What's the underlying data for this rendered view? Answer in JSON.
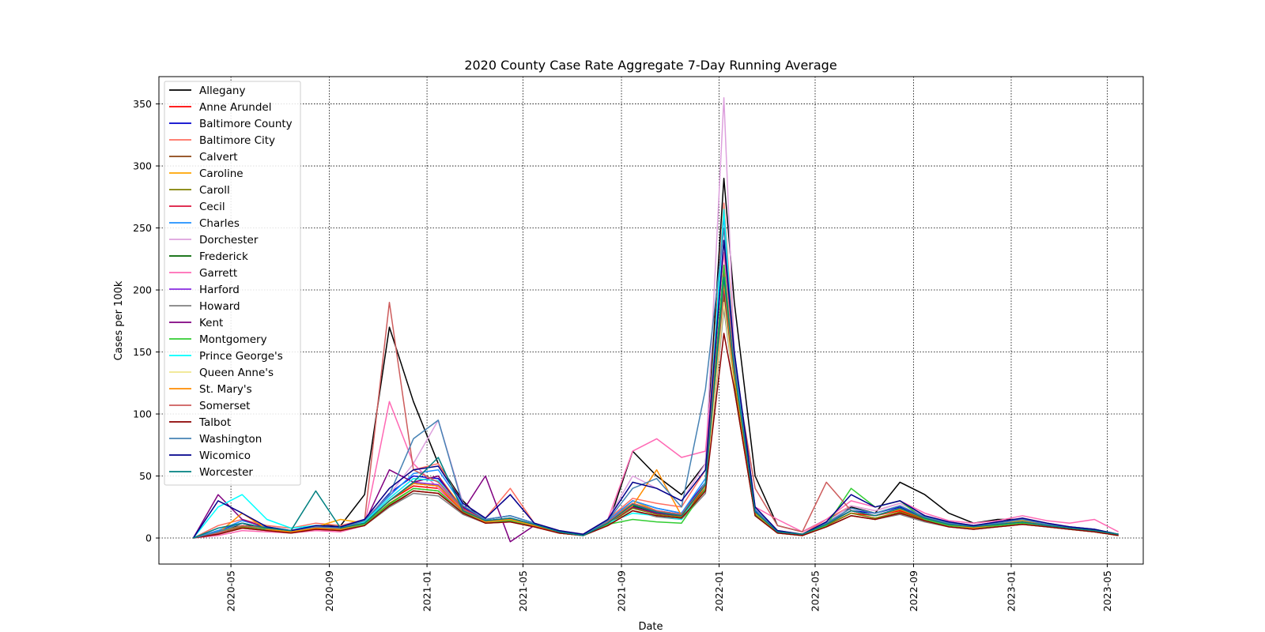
{
  "chart_data": {
    "type": "line",
    "title": "2020 County Case Rate Aggregate 7-Day Running Average",
    "xlabel": "Date",
    "ylabel": "Cases per 100k",
    "x_ticks": [
      "2020-05",
      "2020-09",
      "2021-01",
      "2021-05",
      "2021-09",
      "2022-01",
      "2022-05",
      "2022-09",
      "2023-01",
      "2023-05"
    ],
    "y_ticks": [
      0,
      50,
      100,
      150,
      200,
      250,
      300,
      350
    ],
    "xlim": [
      "2020-02-01",
      "2023-06-15"
    ],
    "ylim": [
      -21,
      372
    ],
    "grid": true,
    "legend_position": "upper-left",
    "x": [
      "2020-03-15",
      "2020-04-15",
      "2020-05-15",
      "2020-06-15",
      "2020-07-15",
      "2020-08-15",
      "2020-09-15",
      "2020-10-15",
      "2020-11-15",
      "2020-12-15",
      "2021-01-15",
      "2021-02-15",
      "2021-03-15",
      "2021-04-15",
      "2021-05-15",
      "2021-06-15",
      "2021-07-15",
      "2021-08-15",
      "2021-09-15",
      "2021-10-15",
      "2021-11-15",
      "2021-12-15",
      "2022-01-07",
      "2022-01-20",
      "2022-02-15",
      "2022-03-15",
      "2022-04-15",
      "2022-05-15",
      "2022-06-15",
      "2022-07-15",
      "2022-08-15",
      "2022-09-15",
      "2022-10-15",
      "2022-11-15",
      "2022-12-15",
      "2023-01-15",
      "2023-02-15",
      "2023-03-15",
      "2023-04-15",
      "2023-05-15"
    ],
    "series": [
      {
        "name": "Allegany",
        "color": "#000000",
        "values": [
          0,
          3,
          12,
          6,
          5,
          10,
          10,
          35,
          170,
          110,
          60,
          30,
          12,
          15,
          10,
          5,
          3,
          10,
          70,
          50,
          35,
          60,
          290,
          190,
          50,
          10,
          5,
          15,
          25,
          20,
          45,
          35,
          20,
          12,
          15,
          15,
          10,
          8,
          6,
          3
        ]
      },
      {
        "name": "Anne Arundel",
        "color": "#ff0000",
        "values": [
          0,
          5,
          10,
          7,
          5,
          8,
          7,
          12,
          30,
          42,
          40,
          22,
          14,
          15,
          10,
          4,
          2,
          12,
          25,
          20,
          18,
          40,
          200,
          130,
          20,
          5,
          3,
          10,
          20,
          18,
          22,
          15,
          10,
          8,
          10,
          12,
          10,
          8,
          6,
          3
        ]
      },
      {
        "name": "Baltimore County",
        "color": "#0000cd",
        "values": [
          0,
          6,
          12,
          8,
          6,
          9,
          8,
          14,
          36,
          50,
          48,
          25,
          15,
          18,
          12,
          5,
          2,
          14,
          30,
          24,
          20,
          45,
          220,
          140,
          22,
          5,
          3,
          12,
          22,
          20,
          25,
          17,
          12,
          9,
          12,
          14,
          11,
          8,
          6,
          3
        ]
      },
      {
        "name": "Baltimore City",
        "color": "#ff6f61",
        "values": [
          0,
          10,
          15,
          10,
          8,
          12,
          10,
          15,
          40,
          55,
          60,
          28,
          16,
          40,
          12,
          6,
          3,
          15,
          32,
          28,
          25,
          55,
          270,
          150,
          25,
          6,
          3,
          15,
          26,
          22,
          28,
          18,
          13,
          10,
          13,
          16,
          12,
          9,
          7,
          3
        ]
      },
      {
        "name": "Calvert",
        "color": "#8b4513",
        "values": [
          0,
          3,
          8,
          6,
          4,
          7,
          6,
          10,
          25,
          38,
          36,
          20,
          12,
          13,
          9,
          4,
          2,
          10,
          22,
          18,
          16,
          38,
          190,
          120,
          18,
          4,
          2,
          9,
          18,
          15,
          20,
          14,
          9,
          7,
          9,
          11,
          9,
          7,
          5,
          2
        ]
      },
      {
        "name": "Caroline",
        "color": "#ffa500",
        "values": [
          0,
          4,
          10,
          7,
          5,
          9,
          15,
          12,
          30,
          45,
          50,
          24,
          14,
          16,
          11,
          5,
          2,
          12,
          30,
          22,
          18,
          42,
          210,
          135,
          20,
          5,
          3,
          11,
          22,
          18,
          24,
          16,
          11,
          9,
          12,
          14,
          10,
          8,
          6,
          3
        ]
      },
      {
        "name": "Caroll",
        "color": "#808000",
        "values": [
          0,
          4,
          9,
          6,
          5,
          8,
          7,
          11,
          28,
          40,
          38,
          21,
          13,
          14,
          10,
          4,
          2,
          11,
          24,
          19,
          17,
          39,
          195,
          125,
          19,
          4,
          2,
          10,
          20,
          16,
          21,
          15,
          10,
          8,
          10,
          12,
          9,
          7,
          5,
          2
        ]
      },
      {
        "name": "Cecil",
        "color": "#dc143c",
        "values": [
          0,
          4,
          10,
          7,
          5,
          9,
          8,
          13,
          32,
          48,
          46,
          24,
          14,
          16,
          11,
          5,
          2,
          13,
          28,
          22,
          19,
          44,
          215,
          140,
          21,
          5,
          3,
          11,
          22,
          18,
          24,
          16,
          11,
          9,
          11,
          13,
          10,
          8,
          6,
          3
        ]
      },
      {
        "name": "Charles",
        "color": "#1e90ff",
        "values": [
          0,
          6,
          14,
          9,
          6,
          10,
          9,
          14,
          34,
          52,
          55,
          26,
          15,
          18,
          12,
          5,
          2,
          14,
          30,
          24,
          20,
          48,
          260,
          145,
          23,
          5,
          3,
          12,
          24,
          20,
          26,
          17,
          12,
          10,
          12,
          15,
          11,
          9,
          7,
          3
        ]
      },
      {
        "name": "Dorchester",
        "color": "#dda0dd",
        "values": [
          0,
          5,
          12,
          8,
          6,
          10,
          9,
          15,
          35,
          60,
          95,
          28,
          16,
          35,
          12,
          6,
          3,
          15,
          50,
          40,
          30,
          60,
          355,
          150,
          25,
          6,
          3,
          13,
          26,
          22,
          28,
          18,
          13,
          10,
          13,
          16,
          12,
          9,
          7,
          3
        ]
      },
      {
        "name": "Frederick",
        "color": "#006400",
        "values": [
          0,
          4,
          10,
          7,
          5,
          8,
          7,
          12,
          30,
          44,
          42,
          22,
          13,
          15,
          10,
          4,
          2,
          12,
          26,
          20,
          18,
          42,
          205,
          130,
          20,
          5,
          3,
          11,
          22,
          18,
          23,
          16,
          11,
          8,
          11,
          13,
          10,
          8,
          6,
          3
        ]
      },
      {
        "name": "Garrett",
        "color": "#ff69b4",
        "values": [
          0,
          2,
          6,
          5,
          4,
          6,
          5,
          10,
          110,
          60,
          40,
          20,
          12,
          15,
          10,
          5,
          3,
          15,
          70,
          80,
          65,
          70,
          230,
          140,
          25,
          15,
          5,
          15,
          30,
          25,
          30,
          20,
          14,
          12,
          14,
          18,
          14,
          12,
          15,
          5
        ]
      },
      {
        "name": "Harford",
        "color": "#8a2be2",
        "values": [
          0,
          4,
          10,
          7,
          5,
          8,
          7,
          12,
          30,
          45,
          43,
          22,
          14,
          16,
          11,
          5,
          2,
          12,
          27,
          21,
          18,
          43,
          210,
          135,
          21,
          5,
          3,
          11,
          22,
          18,
          24,
          16,
          11,
          9,
          11,
          13,
          10,
          8,
          6,
          3
        ]
      },
      {
        "name": "Howard",
        "color": "#808080",
        "values": [
          0,
          3,
          8,
          6,
          4,
          7,
          6,
          10,
          25,
          36,
          34,
          19,
          12,
          13,
          9,
          4,
          2,
          10,
          22,
          17,
          15,
          36,
          185,
          120,
          18,
          4,
          2,
          9,
          18,
          15,
          19,
          13,
          9,
          7,
          9,
          11,
          9,
          7,
          5,
          2
        ]
      },
      {
        "name": "Kent",
        "color": "#800080",
        "values": [
          0,
          35,
          15,
          8,
          5,
          8,
          7,
          12,
          55,
          45,
          50,
          22,
          50,
          -3,
          10,
          4,
          2,
          12,
          25,
          20,
          18,
          42,
          200,
          130,
          20,
          5,
          3,
          11,
          22,
          18,
          23,
          16,
          11,
          8,
          11,
          13,
          10,
          8,
          6,
          3
        ]
      },
      {
        "name": "Montgomery",
        "color": "#32cd32",
        "values": [
          0,
          5,
          10,
          7,
          5,
          8,
          7,
          11,
          27,
          40,
          38,
          20,
          13,
          14,
          10,
          4,
          2,
          11,
          15,
          13,
          12,
          40,
          220,
          130,
          19,
          4,
          2,
          10,
          40,
          25,
          30,
          15,
          10,
          8,
          10,
          12,
          9,
          7,
          5,
          2
        ]
      },
      {
        "name": "Prince George's",
        "color": "#00ffff",
        "values": [
          0,
          25,
          35,
          15,
          8,
          10,
          9,
          13,
          32,
          48,
          46,
          23,
          14,
          16,
          11,
          5,
          2,
          12,
          20,
          18,
          15,
          45,
          265,
          140,
          21,
          5,
          3,
          11,
          22,
          18,
          24,
          16,
          11,
          9,
          11,
          13,
          10,
          8,
          6,
          3
        ]
      },
      {
        "name": "Queen Anne's",
        "color": "#f0e68c",
        "values": [
          0,
          3,
          8,
          6,
          4,
          7,
          6,
          10,
          26,
          38,
          36,
          20,
          12,
          13,
          9,
          4,
          2,
          10,
          22,
          18,
          16,
          38,
          190,
          120,
          18,
          4,
          2,
          9,
          18,
          15,
          20,
          14,
          9,
          7,
          9,
          11,
          9,
          7,
          5,
          2
        ]
      },
      {
        "name": "St. Mary's",
        "color": "#ff8c00",
        "values": [
          0,
          4,
          20,
          7,
          5,
          8,
          7,
          12,
          30,
          44,
          42,
          22,
          13,
          15,
          10,
          4,
          2,
          12,
          26,
          55,
          18,
          42,
          205,
          130,
          20,
          5,
          3,
          11,
          22,
          18,
          23,
          16,
          11,
          8,
          11,
          13,
          10,
          8,
          6,
          3
        ]
      },
      {
        "name": "Somerset",
        "color": "#cd5c5c",
        "values": [
          0,
          4,
          10,
          8,
          6,
          9,
          8,
          14,
          190,
          55,
          45,
          23,
          14,
          16,
          11,
          5,
          2,
          13,
          28,
          22,
          19,
          44,
          240,
          140,
          40,
          10,
          5,
          45,
          22,
          18,
          24,
          16,
          11,
          9,
          11,
          13,
          10,
          8,
          6,
          3
        ]
      },
      {
        "name": "Talbot",
        "color": "#8b0000",
        "values": [
          0,
          3,
          8,
          6,
          4,
          7,
          6,
          10,
          26,
          38,
          36,
          20,
          12,
          13,
          9,
          4,
          2,
          10,
          22,
          18,
          16,
          38,
          165,
          120,
          18,
          4,
          2,
          9,
          18,
          15,
          20,
          14,
          9,
          7,
          9,
          11,
          9,
          7,
          5,
          2
        ]
      },
      {
        "name": "Washington",
        "color": "#4682b4",
        "values": [
          0,
          5,
          12,
          8,
          6,
          9,
          8,
          14,
          35,
          80,
          95,
          26,
          15,
          18,
          12,
          5,
          2,
          14,
          40,
          48,
          25,
          120,
          250,
          145,
          23,
          5,
          3,
          12,
          24,
          20,
          26,
          17,
          12,
          10,
          12,
          15,
          11,
          9,
          7,
          3
        ]
      },
      {
        "name": "Wicomico",
        "color": "#00008b",
        "values": [
          0,
          30,
          20,
          9,
          6,
          10,
          9,
          15,
          40,
          55,
          58,
          28,
          16,
          35,
          12,
          6,
          3,
          15,
          45,
          40,
          30,
          55,
          240,
          150,
          25,
          6,
          3,
          13,
          35,
          25,
          30,
          18,
          13,
          10,
          13,
          16,
          12,
          9,
          7,
          3
        ]
      },
      {
        "name": "Worcester",
        "color": "#008080",
        "values": [
          0,
          8,
          12,
          8,
          6,
          38,
          8,
          12,
          30,
          45,
          65,
          22,
          14,
          16,
          11,
          5,
          2,
          12,
          27,
          21,
          18,
          43,
          210,
          135,
          21,
          5,
          3,
          11,
          22,
          18,
          24,
          16,
          11,
          9,
          11,
          13,
          10,
          8,
          6,
          3
        ]
      }
    ]
  }
}
